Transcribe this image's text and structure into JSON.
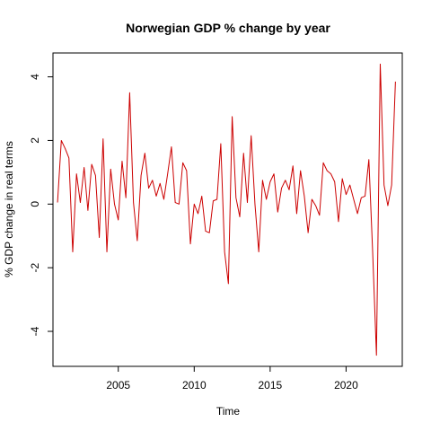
{
  "chart_data": {
    "type": "line",
    "title": "Norwegian GDP % change by year",
    "xlabel": "Time",
    "ylabel": "% GDP change in real terms",
    "xlim": [
      2000.7,
      2023.7
    ],
    "ylim": [
      -5.1,
      4.75
    ],
    "x_ticks": [
      2005,
      2010,
      2015,
      2020
    ],
    "x_tick_labels": [
      "2005",
      "2010",
      "2015",
      "2020"
    ],
    "y_ticks": [
      -4,
      -2,
      0,
      2,
      4
    ],
    "y_tick_labels": [
      "-4",
      "-2",
      "0",
      "2",
      "4"
    ],
    "grid": false,
    "legend": "none",
    "series": [
      {
        "color": "#cc0000",
        "x": [
          2001.0,
          2001.25,
          2001.5,
          2001.75,
          2002.0,
          2002.25,
          2002.5,
          2002.75,
          2003.0,
          2003.25,
          2003.5,
          2003.75,
          2004.0,
          2004.25,
          2004.5,
          2004.75,
          2005.0,
          2005.25,
          2005.5,
          2005.75,
          2006.0,
          2006.25,
          2006.5,
          2006.75,
          2007.0,
          2007.25,
          2007.5,
          2007.75,
          2008.0,
          2008.25,
          2008.5,
          2008.75,
          2009.0,
          2009.25,
          2009.5,
          2009.75,
          2010.0,
          2010.25,
          2010.5,
          2010.75,
          2011.0,
          2011.25,
          2011.5,
          2011.75,
          2012.0,
          2012.25,
          2012.5,
          2012.75,
          2013.0,
          2013.25,
          2013.5,
          2013.75,
          2014.0,
          2014.25,
          2014.5,
          2014.75,
          2015.0,
          2015.25,
          2015.5,
          2015.75,
          2016.0,
          2016.25,
          2016.5,
          2016.75,
          2017.0,
          2017.25,
          2017.5,
          2017.75,
          2018.0,
          2018.25,
          2018.5,
          2018.75,
          2019.0,
          2019.25,
          2019.5,
          2019.75,
          2020.0,
          2020.25,
          2020.5,
          2020.75,
          2021.0,
          2021.25,
          2021.5,
          2021.75,
          2022.0,
          2022.25,
          2022.5,
          2022.75,
          2023.0,
          2023.25
        ],
        "y": [
          0.05,
          2.0,
          1.75,
          1.45,
          -1.5,
          0.95,
          0.05,
          1.15,
          -0.2,
          1.25,
          0.9,
          -1.05,
          2.05,
          -1.5,
          1.1,
          0.0,
          -0.5,
          1.35,
          0.2,
          3.5,
          0.05,
          -1.15,
          0.9,
          1.6,
          0.5,
          0.75,
          0.25,
          0.65,
          0.15,
          0.95,
          1.8,
          0.05,
          0.0,
          1.3,
          1.05,
          -1.25,
          0.0,
          -0.3,
          0.25,
          -0.85,
          -0.9,
          0.1,
          0.15,
          1.9,
          -1.5,
          -2.5,
          2.75,
          0.2,
          -0.4,
          1.6,
          0.05,
          2.15,
          0.0,
          -1.5,
          0.75,
          0.15,
          0.7,
          0.95,
          -0.25,
          0.5,
          0.75,
          0.45,
          1.2,
          -0.3,
          1.05,
          0.25,
          -0.9,
          0.15,
          -0.05,
          -0.35,
          1.3,
          1.05,
          0.95,
          0.7,
          -0.55,
          0.8,
          0.3,
          0.6,
          0.15,
          -0.3,
          0.2,
          0.25,
          1.4,
          -1.5,
          -4.75,
          4.4,
          0.6,
          -0.05,
          0.6,
          3.85
        ]
      }
    ]
  }
}
